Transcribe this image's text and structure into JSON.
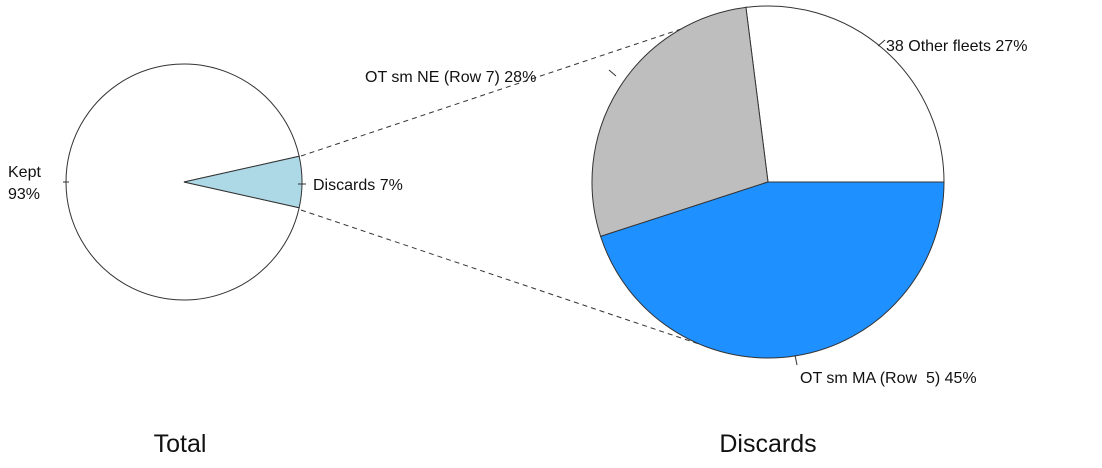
{
  "chart_data": [
    {
      "type": "pie",
      "title": "Total",
      "slices": [
        {
          "label": "Kept",
          "pct_label": "93%",
          "value": 93,
          "color": "#ffffff"
        },
        {
          "label": "Discards",
          "pct_label": "7%",
          "value": 7,
          "color": "#add8e6"
        }
      ]
    },
    {
      "type": "pie",
      "title": "Discards",
      "slices": [
        {
          "label": "38 Other fleets",
          "pct_label": "27%",
          "value": 27,
          "color": "#ffffff"
        },
        {
          "label": "OT sm NE (Row 7)",
          "pct_label": "28%",
          "value": 28,
          "color": "#bebebe"
        },
        {
          "label": "OT sm MA (Row  5)",
          "pct_label": "45%",
          "value": 45,
          "color": "#1e90ff"
        }
      ]
    }
  ]
}
